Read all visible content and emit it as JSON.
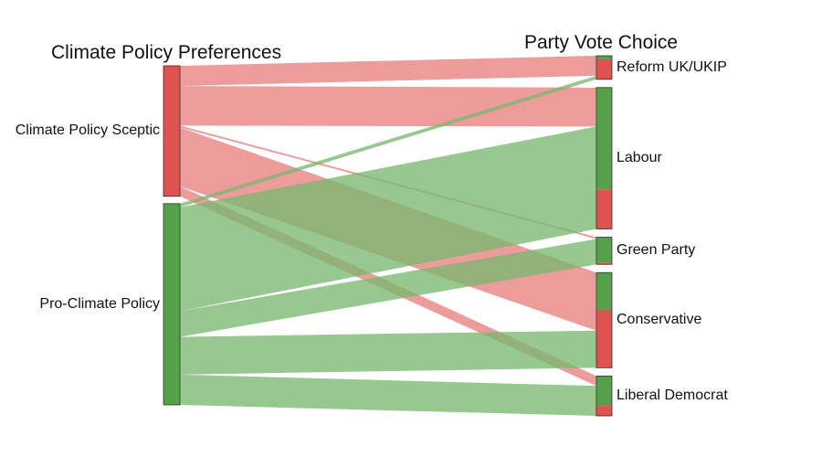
{
  "diagram": {
    "type": "sankey",
    "left_title": "Climate Policy Preferences",
    "right_title": "Party Vote Choice",
    "colors": {
      "sceptic": "#e05252",
      "pro": "#55a14a",
      "sceptic_flow": "#e88080",
      "pro_flow": "#7ab86f",
      "node_border": "#333333"
    },
    "left_nodes": [
      {
        "id": "sceptic",
        "label": "Climate Policy Sceptic",
        "color": "sceptic"
      },
      {
        "id": "pro",
        "label": "Pro-Climate Policy",
        "color": "pro"
      }
    ],
    "right_nodes": [
      {
        "id": "reform",
        "label": "Reform UK/UKIP"
      },
      {
        "id": "labour",
        "label": "Labour"
      },
      {
        "id": "green",
        "label": "Green Party"
      },
      {
        "id": "conservative",
        "label": "Conservative"
      },
      {
        "id": "libdem",
        "label": "Liberal Democrat"
      }
    ],
    "flows": [
      {
        "source": "sceptic",
        "target": "reform",
        "value": 22
      },
      {
        "source": "sceptic",
        "target": "labour",
        "value": 43
      },
      {
        "source": "sceptic",
        "target": "green",
        "value": 2
      },
      {
        "source": "sceptic",
        "target": "conservative",
        "value": 64
      },
      {
        "source": "sceptic",
        "target": "libdem",
        "value": 11
      },
      {
        "source": "pro",
        "target": "reform",
        "value": 4
      },
      {
        "source": "pro",
        "target": "labour",
        "value": 113
      },
      {
        "source": "pro",
        "target": "green",
        "value": 28
      },
      {
        "source": "pro",
        "target": "conservative",
        "value": 41
      },
      {
        "source": "pro",
        "target": "libdem",
        "value": 33
      }
    ]
  }
}
